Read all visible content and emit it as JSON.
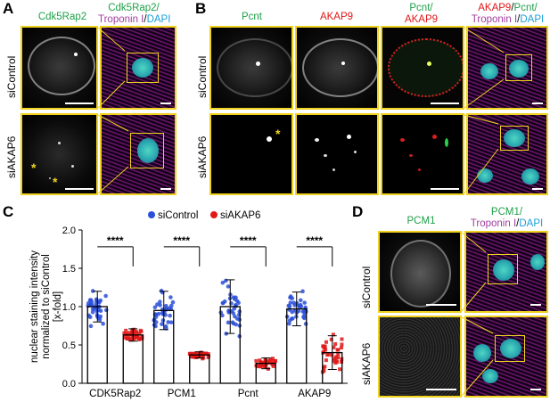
{
  "panels": {
    "A": {
      "letter": "A",
      "col1": "Cdk5Rap2",
      "col2_line1": "Cdk5Rap2/",
      "col2_line2_a": "Troponin I",
      "col2_line2_sep": "/",
      "col2_line2_b": "DAPI",
      "row1": "siControl",
      "row2": "siAKAP6"
    },
    "B": {
      "letter": "B",
      "col1": "Pcnt",
      "col2": "AKAP9",
      "col3_line1": "Pcnt/",
      "col3_line2": "AKAP9",
      "col4_line1_a": "AKAP9",
      "col4_line1_sep": "/",
      "col4_line1_b": "Pcnt/",
      "col4_line2_a": "Troponin I",
      "col4_line2_sep": "/",
      "col4_line2_b": "DAPI",
      "row1": "siControl",
      "row2": "siAKAP6"
    },
    "C": {
      "letter": "C"
    },
    "D": {
      "letter": "D",
      "col1": "PCM1",
      "col2_line1": "PCM1/",
      "col2_line2_a": "Troponin I",
      "col2_line2_sep": "/",
      "col2_line2_b": "DAPI",
      "row1": "siControl",
      "row2": "siAKAP6"
    }
  },
  "colors": {
    "green": "#1fa04a",
    "red": "#e01818",
    "magenta": "#a23ea0",
    "cyan": "#1a9fd8",
    "highlight_border": "#f0d21e",
    "siControl": "#2a4fd8",
    "siAKAP6": "#e01818"
  },
  "chart_data": {
    "type": "bar",
    "ylabel_lines": [
      "nuclear staining intensity",
      "normalized to siControl",
      "[x-fold]"
    ],
    "ylim": [
      0.0,
      2.0
    ],
    "yticks": [
      "0.0",
      "0.5",
      "1.0",
      "1.5",
      "2.0"
    ],
    "categories": [
      "CDK5Rap2",
      "PCM1",
      "Pcnt",
      "AKAP9"
    ],
    "legend_position": "top",
    "significance": [
      "****",
      "****",
      "****",
      "****"
    ],
    "series": [
      {
        "name": "siControl",
        "values": [
          1.0,
          0.95,
          1.0,
          0.97
        ],
        "errors": [
          0.2,
          0.25,
          0.35,
          0.22
        ]
      },
      {
        "name": "siAKAP6",
        "values": [
          0.63,
          0.37,
          0.26,
          0.4
        ],
        "errors": [
          0.08,
          0.04,
          0.07,
          0.22
        ]
      }
    ]
  }
}
